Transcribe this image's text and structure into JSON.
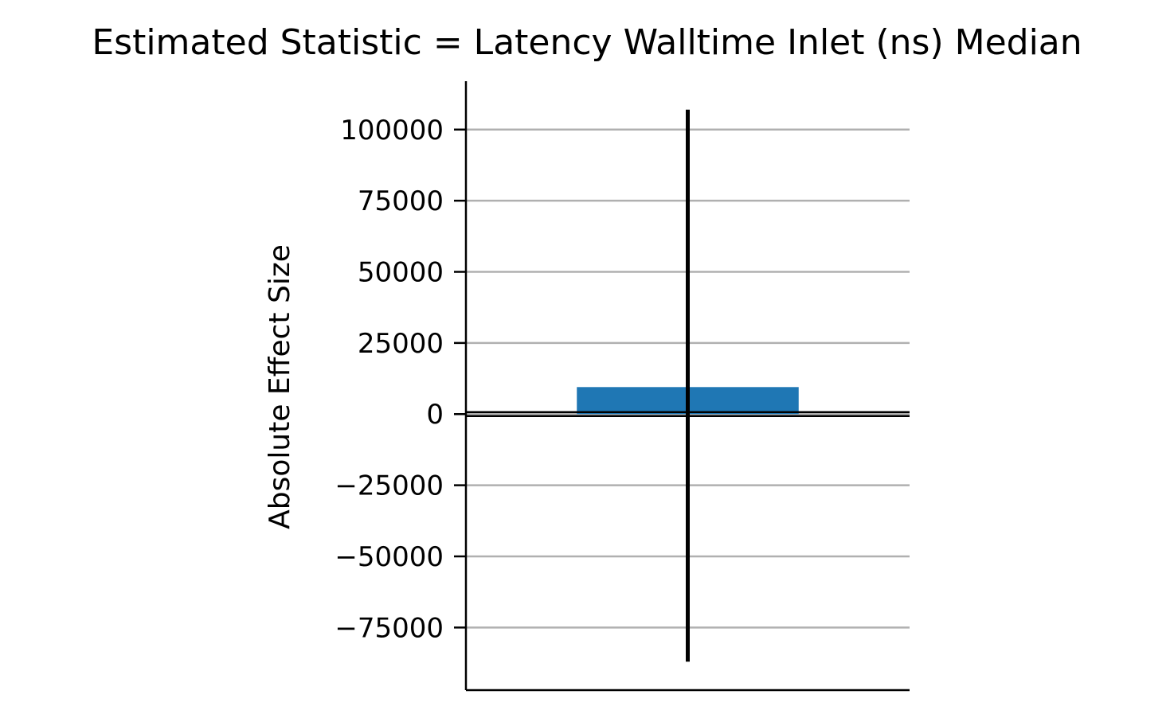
{
  "chart_data": {
    "type": "bar",
    "title": "Estimated Statistic = Latency Walltime Inlet (ns) Median",
    "xlabel": "",
    "ylabel": "Absolute Effect Size",
    "ylim": [
      -97000,
      117000
    ],
    "yticks": [
      100000,
      75000,
      50000,
      25000,
      0,
      -25000,
      -50000,
      -75000
    ],
    "ytick_labels": [
      "100000",
      "75000",
      "50000",
      "25000",
      "0",
      "−25000",
      "−50000",
      "−75000"
    ],
    "grid": true,
    "zero_line": true,
    "categories": [
      ""
    ],
    "values": [
      9500
    ],
    "error_bars": [
      {
        "low": -87000,
        "high": 107000
      }
    ],
    "colors": {
      "bar": "#1f77b4",
      "error_bar": "#000000",
      "grid": "#b0b0b0",
      "axis": "#000000"
    }
  }
}
